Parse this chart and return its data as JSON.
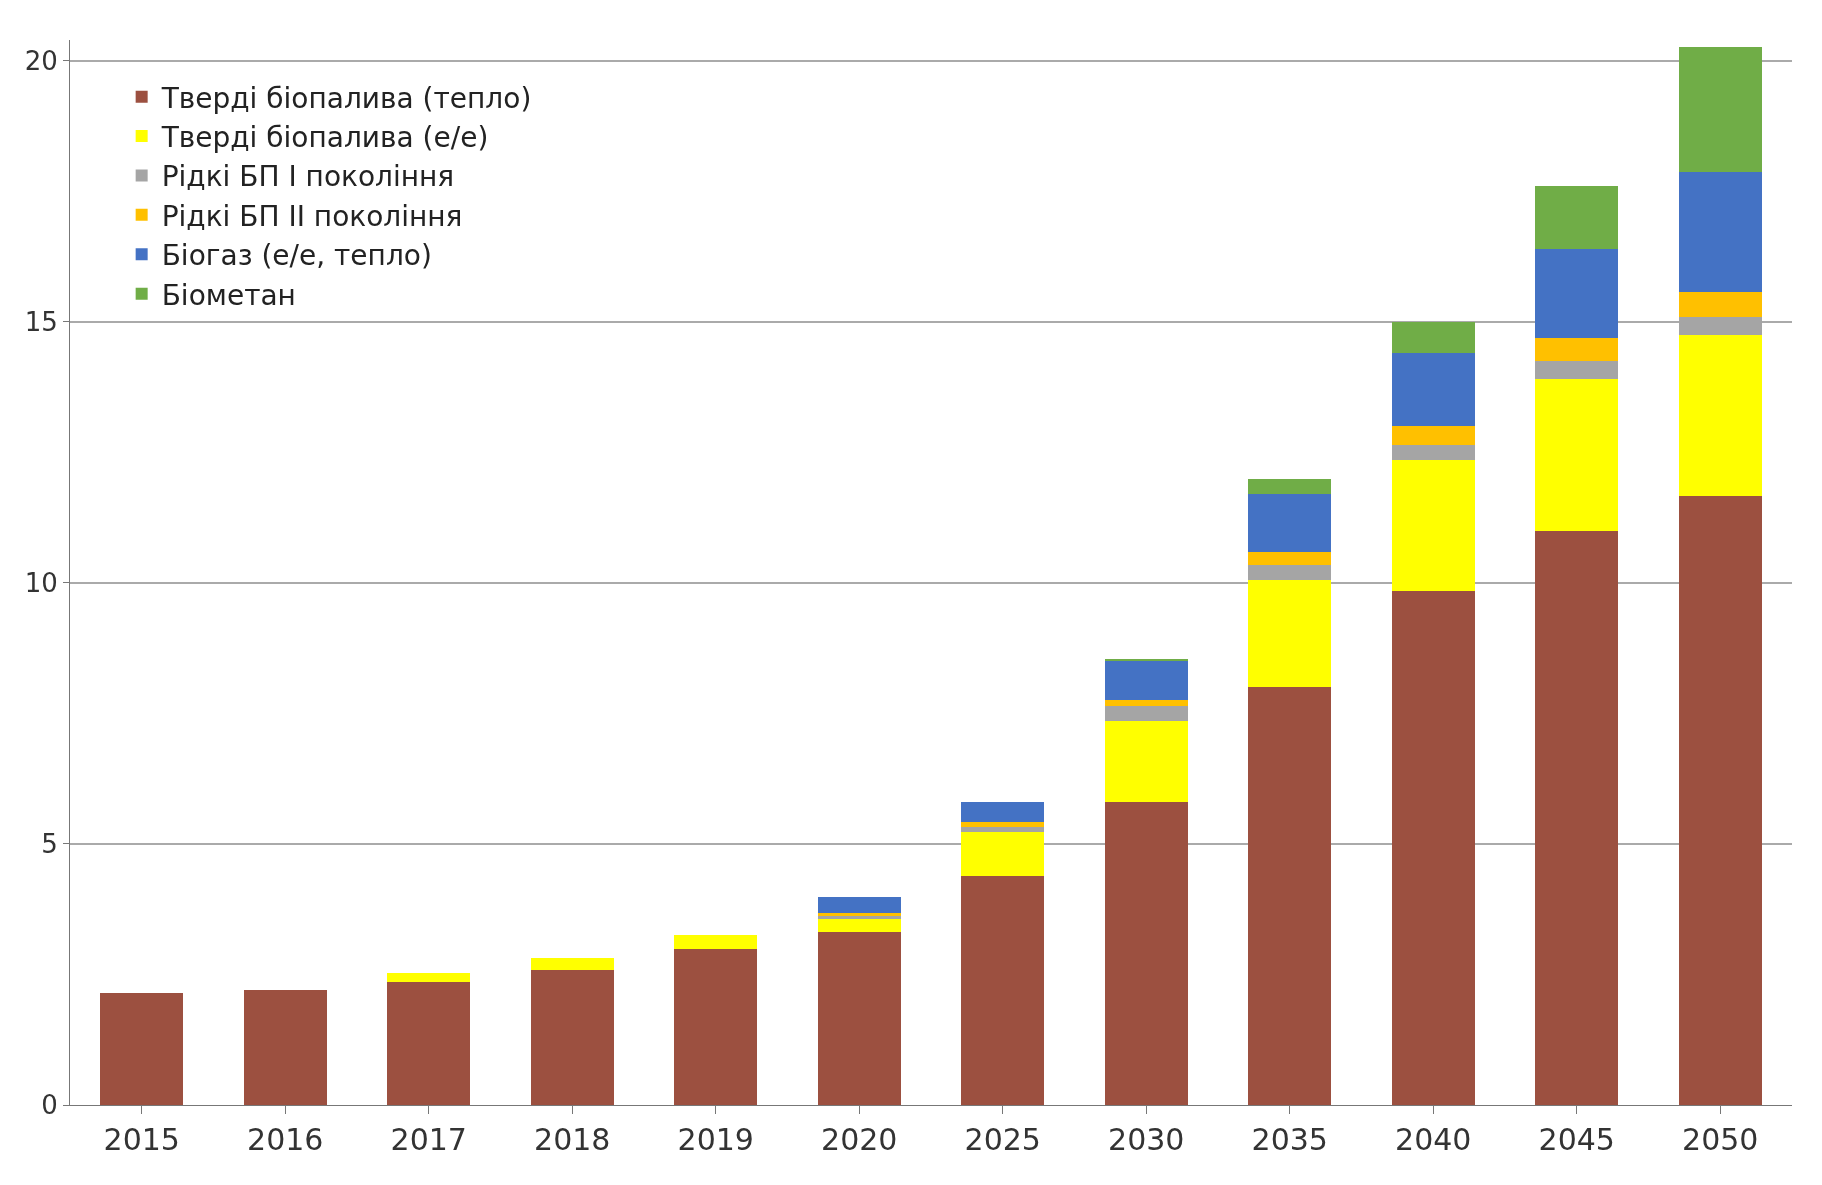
{
  "chart_data": {
    "type": "bar",
    "stacked": true,
    "categories": [
      "2015",
      "2016",
      "2017",
      "2018",
      "2019",
      "2020",
      "2025",
      "2030",
      "2035",
      "2040",
      "2045",
      "2050"
    ],
    "series": [
      {
        "name": "Тверді біопалива (тепло)",
        "color": "#9c5040",
        "values": [
          2.14,
          2.2,
          2.35,
          2.59,
          2.98,
          3.32,
          4.38,
          5.8,
          8.0,
          9.85,
          11.0,
          11.67
        ]
      },
      {
        "name": "Тверді біопалива (е/е)",
        "color": "#ffff00",
        "values": [
          0,
          0,
          0.17,
          0.23,
          0.28,
          0.24,
          0.84,
          1.55,
          2.05,
          2.5,
          2.9,
          3.07
        ]
      },
      {
        "name": "Рідкі БП І покоління",
        "color": "#a5a5a5",
        "values": [
          0,
          0,
          0,
          0,
          0,
          0.06,
          0.1,
          0.3,
          0.3,
          0.3,
          0.35,
          0.35
        ]
      },
      {
        "name": "Рідкі БП ІІ покоління",
        "color": "#ffc000",
        "values": [
          0,
          0,
          0,
          0,
          0,
          0.05,
          0.1,
          0.1,
          0.25,
          0.35,
          0.45,
          0.49
        ]
      },
      {
        "name": "Біогаз (е/е, тепло)",
        "color": "#4472c4",
        "values": [
          0,
          0,
          0,
          0,
          0,
          0.31,
          0.39,
          0.75,
          1.1,
          1.4,
          1.7,
          2.3
        ]
      },
      {
        "name": "Біометан",
        "color": "#70ad47",
        "values": [
          0,
          0,
          0,
          0,
          0,
          0,
          0,
          0.05,
          0.3,
          0.6,
          1.2,
          2.39
        ]
      }
    ],
    "ylim": [
      0,
      20.4
    ],
    "yticks": [
      0,
      5,
      10,
      15,
      20
    ],
    "grid": "y",
    "legend": "top left"
  }
}
